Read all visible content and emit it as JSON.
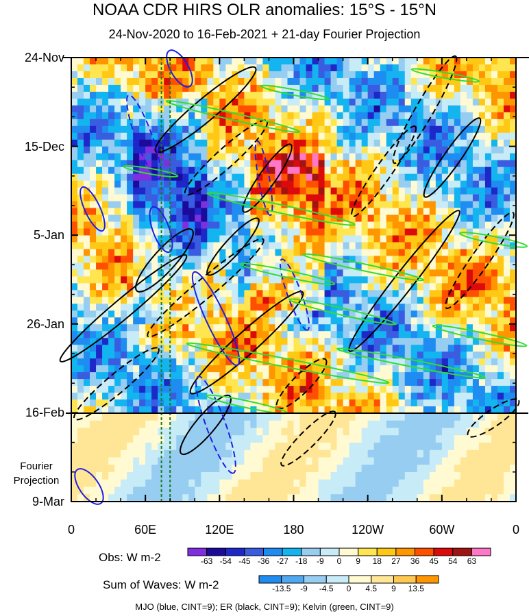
{
  "header": {
    "title": "NOAA CDR HIRS OLR anomalies: 15°S - 15°N",
    "subtitle": "24-Nov-2020 to 16-Feb-2021 + 21-day Fourier Projection"
  },
  "chart_data": {
    "type": "heatmap",
    "title": "NOAA CDR HIRS OLR anomalies: 15°S - 15°N",
    "subtitle": "24-Nov-2020 to 16-Feb-2021 + 21-day Fourier Projection",
    "x_axis": {
      "ticks": [
        "0",
        "60E",
        "120E",
        "180",
        "120W",
        "60W",
        "0"
      ],
      "range_deg_east": [
        0,
        360
      ]
    },
    "y_axis": {
      "ticks": [
        "24-Nov",
        "15-Dec",
        "5-Jan",
        "26-Jan",
        "16-Feb",
        "9-Mar"
      ],
      "direction": "time increases downward"
    },
    "projection_label": [
      "Fourier",
      "Projection"
    ],
    "observed_end": "16-Feb",
    "projection_end": "9-Mar",
    "obs_colorbar": {
      "label": "Obs: W m-2",
      "levels": [
        -63,
        -54,
        -45,
        -36,
        -27,
        -18,
        -9,
        0,
        9,
        18,
        27,
        36,
        45,
        54,
        63
      ],
      "colors": [
        "#7f2fe0",
        "#1c0a9a",
        "#1e28c8",
        "#3a5ce0",
        "#1e8cf0",
        "#14b4f0",
        "#96cdf0",
        "#c8ebf8",
        "#fffad2",
        "#ffe650",
        "#ffc814",
        "#ff9600",
        "#ff5000",
        "#dc0a0a",
        "#a01414",
        "#ff78c8"
      ]
    },
    "waves_colorbar": {
      "label": "Sum of Waves: W m-2",
      "levels": [
        -13.5,
        -9,
        -4.5,
        0,
        4.5,
        9,
        13.5
      ],
      "colors": [
        "#1e8cf0",
        "#50a8f0",
        "#96cdf0",
        "#c8ebf8",
        "#fffad2",
        "#ffe696",
        "#ffc850",
        "#ff9600"
      ]
    },
    "wave_filters": [
      {
        "name": "MJO",
        "color": "blue",
        "cint": 9
      },
      {
        "name": "ER",
        "color": "black",
        "cint": 9
      },
      {
        "name": "Kelvin",
        "color": "green",
        "cint": 9
      }
    ],
    "reference_lines": {
      "vertical_dashed_green_lon_deg_east": [
        73,
        80
      ],
      "horizontal_solid_black_date": "16-Feb"
    },
    "grid": false
  },
  "footer": {
    "legend_text": "MJO (blue, CINT=9); ER (black, CINT=9); Kelvin (green, CINT=9)"
  },
  "colors": {
    "ER": "#000000",
    "MJO": "#1e1ee6",
    "Kelvin": "#32dc32",
    "ref_lines": "#1a7a1a"
  }
}
